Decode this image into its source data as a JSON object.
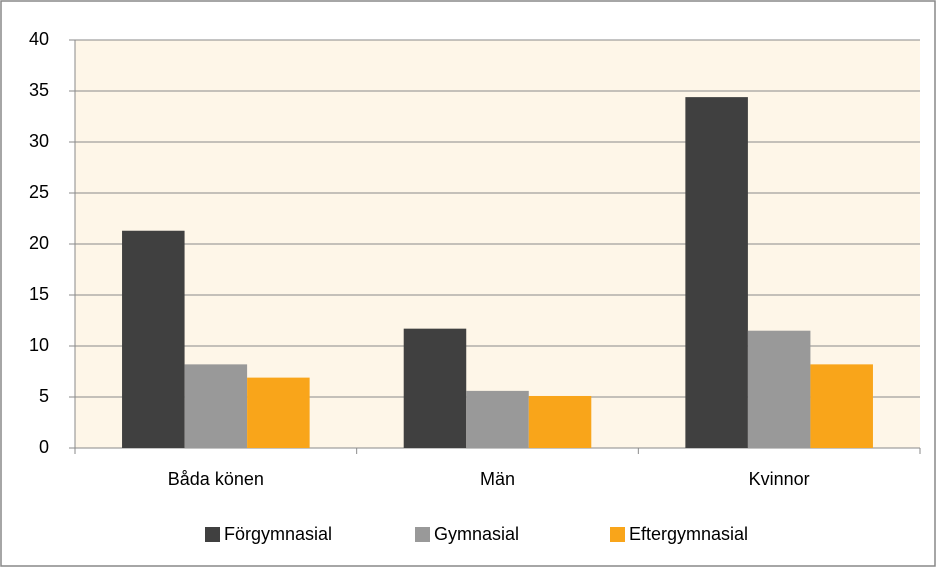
{
  "chart_data": {
    "type": "bar",
    "categories": [
      "Båda könen",
      "Män",
      "Kvinnor"
    ],
    "series": [
      {
        "name": "Förgymnasial",
        "color": "#404040",
        "values": [
          21.3,
          11.7,
          34.4
        ]
      },
      {
        "name": "Gymnasial",
        "color": "#999999",
        "values": [
          8.2,
          5.6,
          11.5
        ]
      },
      {
        "name": "Eftergymnasial",
        "color": "#f9a51a",
        "values": [
          6.9,
          5.1,
          8.2
        ]
      }
    ],
    "ylim": [
      0,
      40
    ],
    "yticks": [
      0,
      5,
      10,
      15,
      20,
      25,
      30,
      35,
      40
    ],
    "grid": true,
    "legend": "bottom"
  }
}
